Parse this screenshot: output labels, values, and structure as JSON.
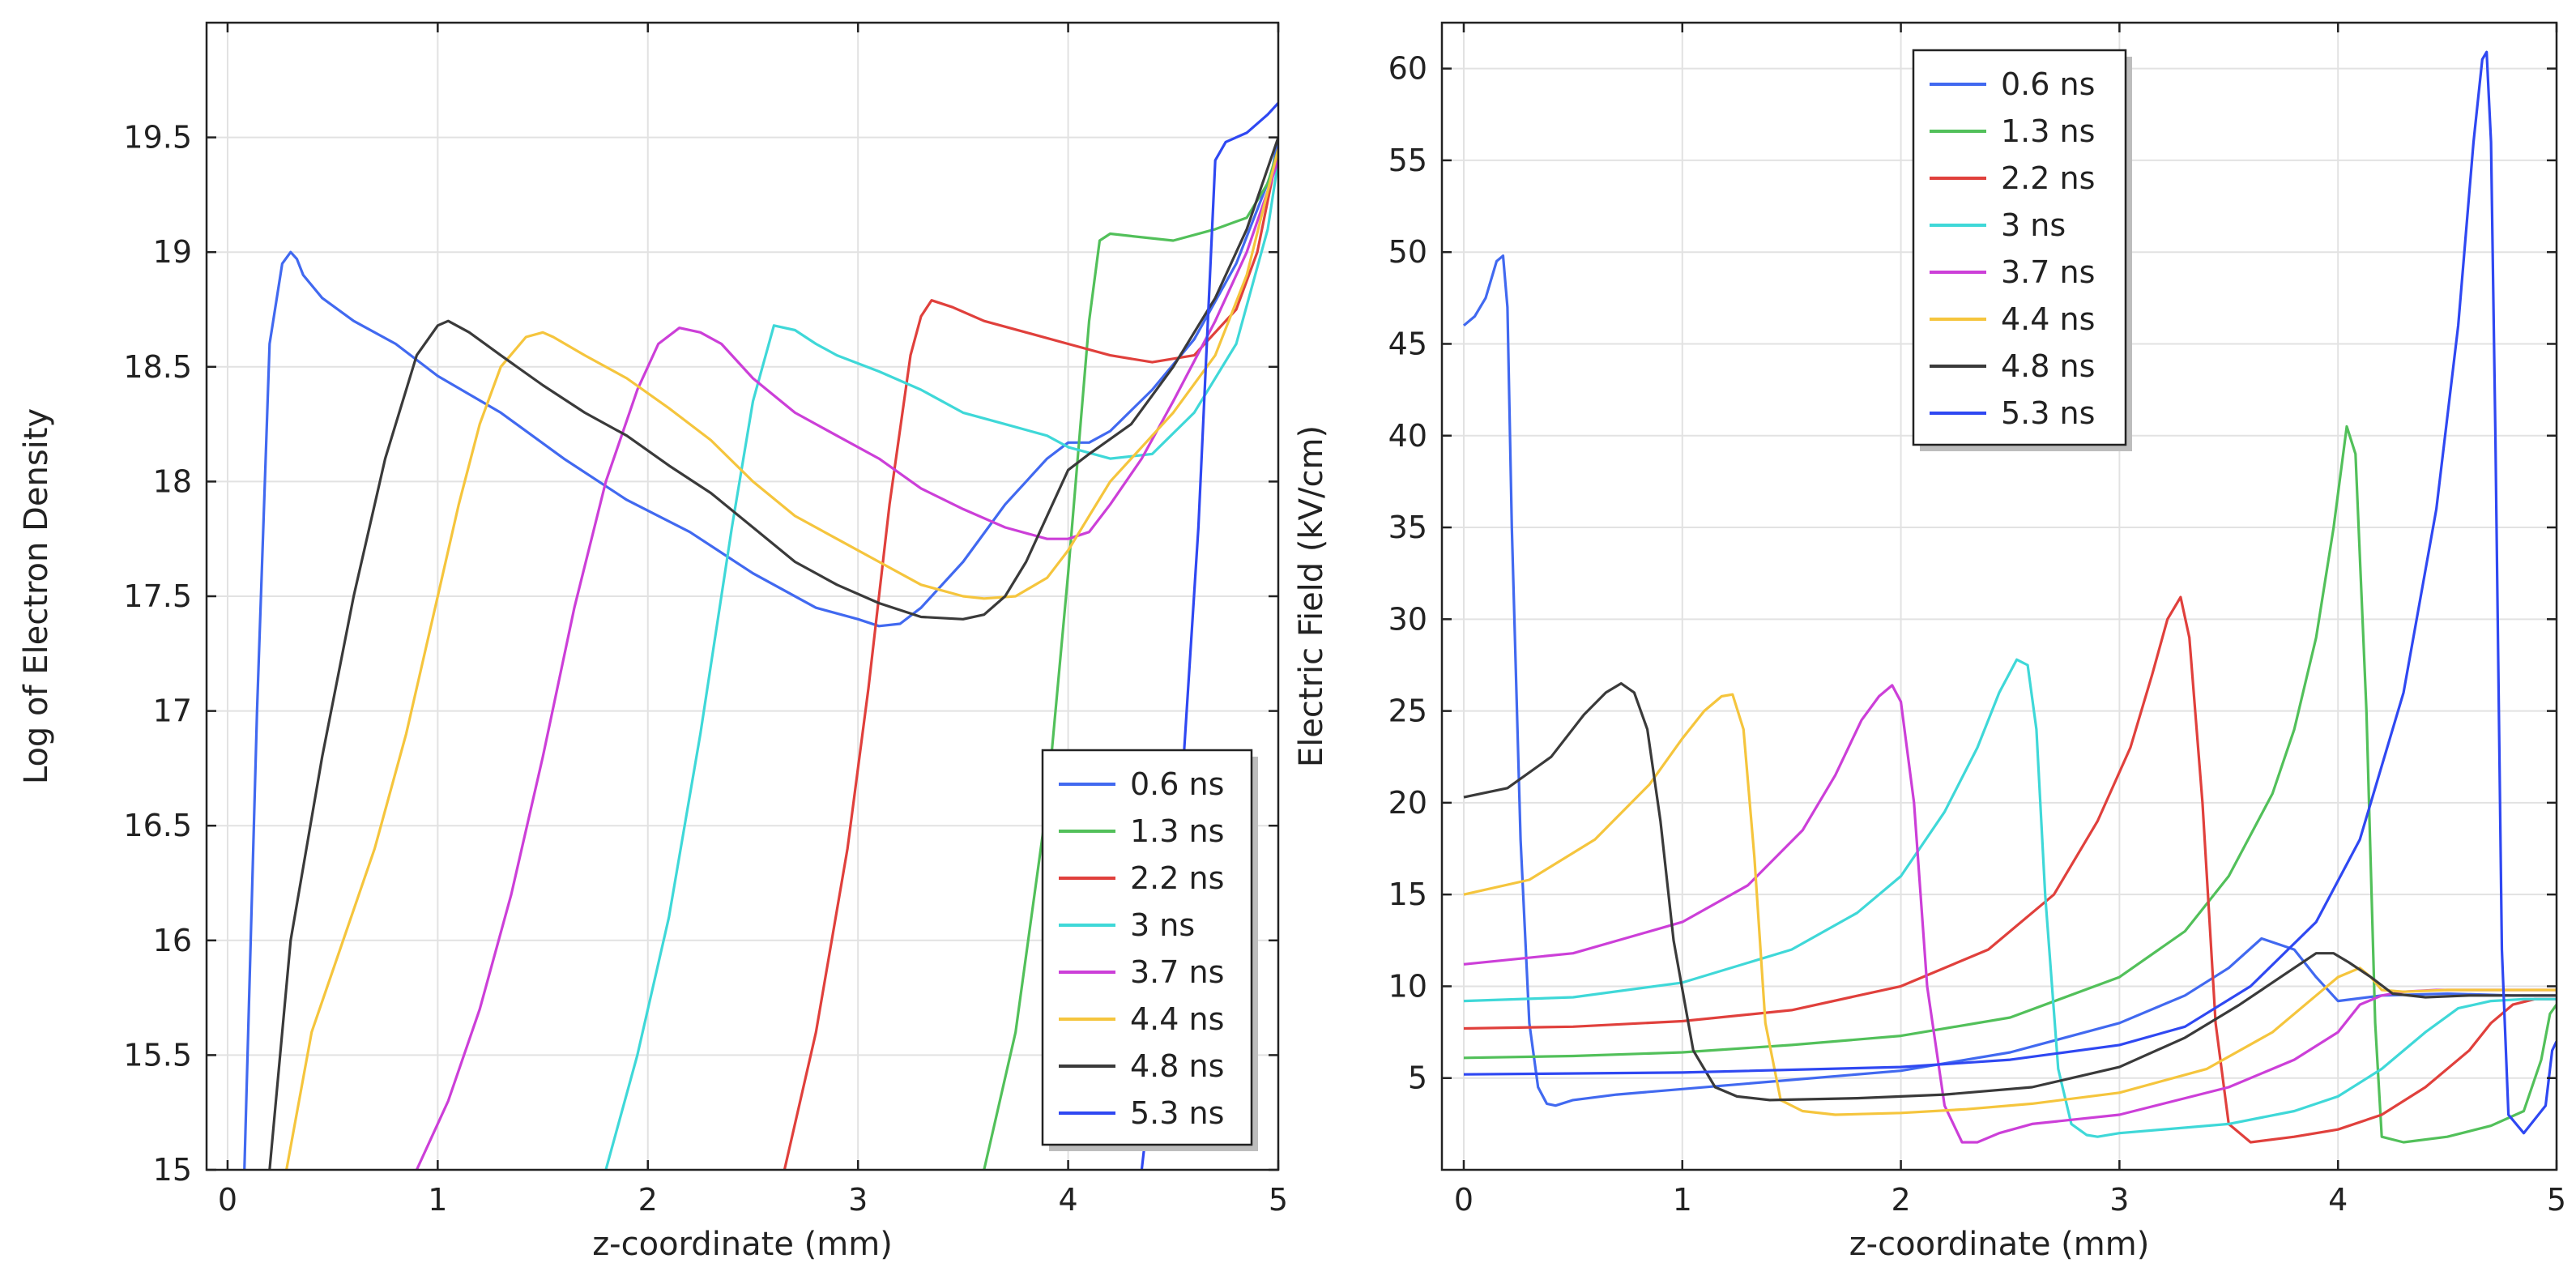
{
  "chart_data": [
    {
      "type": "line",
      "xlabel": "z-coordinate (mm)",
      "ylabel": "Log of Electron Density",
      "xlim": [
        -0.1,
        5
      ],
      "ylim": [
        15,
        20
      ],
      "xticks": [
        0,
        1,
        2,
        3,
        4,
        5
      ],
      "yticks": [
        15,
        15.5,
        16,
        16.5,
        17,
        17.5,
        18,
        18.5,
        19,
        19.5
      ],
      "xtick_labels": [
        "0",
        "1",
        "2",
        "3",
        "4",
        "5"
      ],
      "ytick_labels": [
        "15",
        "15.5",
        "16",
        "16.5",
        "17",
        "17.5",
        "18",
        "18.5",
        "19",
        "19.5"
      ],
      "grid": true,
      "legend_position": "bottom-right",
      "series": [
        {
          "name": "0.6 ns",
          "color": "#4169f0",
          "x": [
            0.08,
            0.14,
            0.2,
            0.26,
            0.3,
            0.33,
            0.36,
            0.45,
            0.6,
            0.8,
            1.0,
            1.3,
            1.6,
            1.9,
            2.2,
            2.5,
            2.8,
            3.0,
            3.1,
            3.2,
            3.3,
            3.5,
            3.7,
            3.9,
            4.0,
            4.1,
            4.2,
            4.4,
            4.6,
            4.8,
            4.97,
            5.0
          ],
          "y": [
            15.0,
            17.0,
            18.6,
            18.95,
            19.0,
            18.97,
            18.9,
            18.8,
            18.7,
            18.6,
            18.46,
            18.3,
            18.1,
            17.92,
            17.78,
            17.6,
            17.45,
            17.4,
            17.37,
            17.38,
            17.45,
            17.65,
            17.9,
            18.1,
            18.17,
            18.17,
            18.22,
            18.4,
            18.62,
            18.95,
            19.35,
            19.5
          ]
        },
        {
          "name": "1.3 ns",
          "color": "#52c05a",
          "x": [
            3.6,
            3.75,
            3.9,
            4.0,
            4.1,
            4.15,
            4.2,
            4.3,
            4.5,
            4.7,
            4.85,
            4.95,
            5.0
          ],
          "y": [
            15.0,
            15.6,
            16.6,
            17.6,
            18.7,
            19.05,
            19.08,
            19.07,
            19.05,
            19.1,
            19.15,
            19.3,
            19.45
          ]
        },
        {
          "name": "2.2 ns",
          "color": "#e0403c",
          "x": [
            2.65,
            2.8,
            2.95,
            3.05,
            3.15,
            3.25,
            3.3,
            3.35,
            3.45,
            3.6,
            3.8,
            4.0,
            4.2,
            4.4,
            4.6,
            4.8,
            4.9,
            5.0
          ],
          "y": [
            15.0,
            15.6,
            16.4,
            17.1,
            17.9,
            18.55,
            18.72,
            18.79,
            18.76,
            18.7,
            18.65,
            18.6,
            18.55,
            18.52,
            18.55,
            18.75,
            19.0,
            19.45
          ]
        },
        {
          "name": "3 ns",
          "color": "#3fd8d8",
          "x": [
            1.8,
            1.95,
            2.1,
            2.25,
            2.4,
            2.5,
            2.6,
            2.7,
            2.8,
            2.9,
            3.1,
            3.3,
            3.5,
            3.7,
            3.9,
            4.0,
            4.2,
            4.4,
            4.6,
            4.8,
            4.95,
            5.0
          ],
          "y": [
            15.0,
            15.5,
            16.1,
            16.9,
            17.8,
            18.35,
            18.68,
            18.66,
            18.6,
            18.55,
            18.48,
            18.4,
            18.3,
            18.25,
            18.2,
            18.15,
            18.1,
            18.12,
            18.3,
            18.6,
            19.1,
            19.4
          ]
        },
        {
          "name": "3.7 ns",
          "color": "#cc3fd8",
          "x": [
            0.9,
            1.05,
            1.2,
            1.35,
            1.5,
            1.65,
            1.8,
            1.95,
            2.05,
            2.15,
            2.25,
            2.35,
            2.5,
            2.7,
            2.9,
            3.1,
            3.3,
            3.5,
            3.7,
            3.9,
            4.0,
            4.1,
            4.2,
            4.35,
            4.5,
            4.7,
            4.85,
            5.0
          ],
          "y": [
            15.0,
            15.3,
            15.7,
            16.2,
            16.8,
            17.45,
            18.0,
            18.4,
            18.6,
            18.67,
            18.65,
            18.6,
            18.45,
            18.3,
            18.2,
            18.1,
            17.97,
            17.88,
            17.8,
            17.75,
            17.75,
            17.78,
            17.9,
            18.1,
            18.35,
            18.7,
            19.0,
            19.4
          ]
        },
        {
          "name": "4.4 ns",
          "color": "#f5c53d",
          "x": [
            0.28,
            0.4,
            0.55,
            0.7,
            0.85,
            1.0,
            1.1,
            1.2,
            1.3,
            1.42,
            1.5,
            1.55,
            1.7,
            1.9,
            2.1,
            2.3,
            2.5,
            2.7,
            2.9,
            3.1,
            3.3,
            3.5,
            3.6,
            3.75,
            3.9,
            4.0,
            4.1,
            4.2,
            4.35,
            4.5,
            4.7,
            4.85,
            5.0
          ],
          "y": [
            15.0,
            15.6,
            16.0,
            16.4,
            16.9,
            17.5,
            17.9,
            18.25,
            18.5,
            18.63,
            18.65,
            18.63,
            18.55,
            18.45,
            18.32,
            18.18,
            18.0,
            17.85,
            17.75,
            17.65,
            17.55,
            17.5,
            17.49,
            17.5,
            17.58,
            17.7,
            17.85,
            18.0,
            18.15,
            18.3,
            18.55,
            18.9,
            19.45
          ]
        },
        {
          "name": "4.8 ns",
          "color": "#3a3a3a",
          "x": [
            0.2,
            0.3,
            0.45,
            0.6,
            0.75,
            0.9,
            1.0,
            1.05,
            1.15,
            1.3,
            1.5,
            1.7,
            1.9,
            2.1,
            2.3,
            2.5,
            2.7,
            2.9,
            3.1,
            3.3,
            3.5,
            3.6,
            3.7,
            3.8,
            3.9,
            4.0,
            4.1,
            4.3,
            4.5,
            4.7,
            4.85,
            5.0
          ],
          "y": [
            15.0,
            16.0,
            16.8,
            17.5,
            18.1,
            18.55,
            18.68,
            18.7,
            18.65,
            18.55,
            18.42,
            18.3,
            18.2,
            18.07,
            17.95,
            17.8,
            17.65,
            17.55,
            17.47,
            17.41,
            17.4,
            17.42,
            17.5,
            17.65,
            17.85,
            18.05,
            18.12,
            18.25,
            18.5,
            18.8,
            19.1,
            19.5
          ]
        },
        {
          "name": "5.3 ns",
          "color": "#2f48f2",
          "x": [
            4.35,
            4.45,
            4.55,
            4.62,
            4.67,
            4.7,
            4.75,
            4.85,
            4.95,
            5.0
          ],
          "y": [
            15.0,
            15.8,
            16.8,
            17.8,
            18.8,
            19.4,
            19.48,
            19.52,
            19.6,
            19.65
          ]
        }
      ]
    },
    {
      "type": "line",
      "xlabel": "z-coordinate (mm)",
      "ylabel": "Electric Field (kV/cm)",
      "xlim": [
        -0.1,
        5
      ],
      "ylim": [
        0,
        62.5
      ],
      "xticks": [
        0,
        1,
        2,
        3,
        4,
        5
      ],
      "yticks": [
        5,
        10,
        15,
        20,
        25,
        30,
        35,
        40,
        45,
        50,
        55,
        60
      ],
      "xtick_labels": [
        "0",
        "1",
        "2",
        "3",
        "4",
        "5"
      ],
      "ytick_labels": [
        "5",
        "10",
        "15",
        "20",
        "25",
        "30",
        "35",
        "40",
        "45",
        "50",
        "55",
        "60"
      ],
      "grid": true,
      "legend_position": "top-left",
      "series": [
        {
          "name": "0.6 ns",
          "color": "#4169f0",
          "x": [
            0.0,
            0.05,
            0.1,
            0.15,
            0.18,
            0.2,
            0.22,
            0.26,
            0.3,
            0.34,
            0.38,
            0.42,
            0.5,
            0.7,
            1.0,
            1.5,
            2.0,
            2.5,
            3.0,
            3.3,
            3.5,
            3.65,
            3.8,
            3.9,
            4.0,
            4.2,
            4.5,
            4.8,
            5.0
          ],
          "y": [
            46.0,
            46.5,
            47.5,
            49.5,
            49.8,
            47.0,
            35.0,
            18.0,
            8.0,
            4.5,
            3.6,
            3.5,
            3.8,
            4.1,
            4.4,
            4.9,
            5.4,
            6.4,
            8.0,
            9.5,
            11.0,
            12.6,
            12.0,
            10.5,
            9.2,
            9.5,
            9.6,
            9.5,
            9.5
          ]
        },
        {
          "name": "1.3 ns",
          "color": "#52c05a",
          "x": [
            0.0,
            0.5,
            1.0,
            1.5,
            2.0,
            2.5,
            3.0,
            3.3,
            3.5,
            3.7,
            3.8,
            3.9,
            3.98,
            4.04,
            4.08,
            4.13,
            4.17,
            4.2,
            4.3,
            4.5,
            4.7,
            4.85,
            4.93,
            4.97,
            5.0
          ],
          "y": [
            6.1,
            6.2,
            6.4,
            6.8,
            7.3,
            8.3,
            10.5,
            13.0,
            16.0,
            20.5,
            24.0,
            29.0,
            35.0,
            40.5,
            39.0,
            25.0,
            8.0,
            1.8,
            1.5,
            1.8,
            2.4,
            3.2,
            6.0,
            8.5,
            9.0
          ]
        },
        {
          "name": "2.2 ns",
          "color": "#e0403c",
          "x": [
            0.0,
            0.5,
            1.0,
            1.5,
            2.0,
            2.4,
            2.7,
            2.9,
            3.05,
            3.15,
            3.22,
            3.28,
            3.32,
            3.38,
            3.44,
            3.5,
            3.6,
            3.8,
            4.0,
            4.2,
            4.4,
            4.6,
            4.7,
            4.8,
            4.9,
            5.0
          ],
          "y": [
            7.7,
            7.8,
            8.1,
            8.7,
            10.0,
            12.0,
            15.0,
            19.0,
            23.0,
            27.0,
            30.0,
            31.2,
            29.0,
            20.0,
            8.0,
            2.5,
            1.5,
            1.8,
            2.2,
            3.0,
            4.5,
            6.5,
            8.0,
            9.0,
            9.3,
            9.3
          ]
        },
        {
          "name": "3 ns",
          "color": "#3fd8d8",
          "x": [
            0.0,
            0.5,
            1.0,
            1.5,
            1.8,
            2.0,
            2.2,
            2.35,
            2.45,
            2.53,
            2.58,
            2.62,
            2.66,
            2.72,
            2.78,
            2.85,
            2.9,
            3.0,
            3.5,
            3.8,
            4.0,
            4.2,
            4.4,
            4.55,
            4.7,
            4.85,
            5.0
          ],
          "y": [
            9.2,
            9.4,
            10.2,
            12.0,
            14.0,
            16.0,
            19.5,
            23.0,
            26.0,
            27.8,
            27.5,
            24.0,
            15.0,
            5.5,
            2.5,
            1.9,
            1.8,
            2.0,
            2.5,
            3.2,
            4.0,
            5.5,
            7.5,
            8.8,
            9.2,
            9.3,
            9.3
          ]
        },
        {
          "name": "3.7 ns",
          "color": "#cc3fd8",
          "x": [
            0.0,
            0.5,
            1.0,
            1.3,
            1.55,
            1.7,
            1.82,
            1.9,
            1.96,
            2.0,
            2.06,
            2.12,
            2.2,
            2.28,
            2.35,
            2.45,
            2.6,
            3.0,
            3.5,
            3.8,
            4.0,
            4.1,
            4.2,
            4.3,
            4.45,
            4.6,
            4.8,
            5.0
          ],
          "y": [
            11.2,
            11.8,
            13.5,
            15.5,
            18.5,
            21.5,
            24.5,
            25.8,
            26.4,
            25.5,
            20.0,
            10.0,
            3.5,
            1.5,
            1.5,
            2.0,
            2.5,
            3.0,
            4.5,
            6.0,
            7.5,
            9.0,
            9.5,
            9.7,
            9.8,
            9.8,
            9.8,
            9.8
          ]
        },
        {
          "name": "4.4 ns",
          "color": "#f5c53d",
          "x": [
            0.0,
            0.3,
            0.6,
            0.85,
            1.0,
            1.1,
            1.18,
            1.23,
            1.28,
            1.33,
            1.38,
            1.45,
            1.55,
            1.7,
            2.0,
            2.3,
            2.6,
            3.0,
            3.4,
            3.7,
            3.9,
            4.0,
            4.1,
            4.15,
            4.2,
            4.3,
            4.5,
            4.8,
            5.0
          ],
          "y": [
            15.0,
            15.8,
            18.0,
            21.0,
            23.5,
            25.0,
            25.8,
            25.9,
            24.0,
            17.0,
            8.0,
            3.8,
            3.2,
            3.0,
            3.1,
            3.3,
            3.6,
            4.2,
            5.5,
            7.5,
            9.5,
            10.5,
            11.0,
            10.5,
            9.8,
            9.7,
            9.8,
            9.8,
            9.8
          ]
        },
        {
          "name": "4.8 ns",
          "color": "#3a3a3a",
          "x": [
            0.0,
            0.2,
            0.4,
            0.55,
            0.65,
            0.72,
            0.78,
            0.84,
            0.9,
            0.96,
            1.05,
            1.15,
            1.25,
            1.4,
            1.8,
            2.2,
            2.6,
            3.0,
            3.3,
            3.55,
            3.75,
            3.9,
            3.98,
            4.05,
            4.15,
            4.25,
            4.4,
            4.6,
            4.8,
            5.0
          ],
          "y": [
            20.3,
            20.8,
            22.5,
            24.8,
            26.0,
            26.5,
            26.0,
            24.0,
            19.0,
            12.5,
            6.5,
            4.5,
            4.0,
            3.8,
            3.9,
            4.1,
            4.5,
            5.6,
            7.2,
            9.0,
            10.6,
            11.8,
            11.8,
            11.3,
            10.5,
            9.6,
            9.4,
            9.5,
            9.5,
            9.5
          ]
        },
        {
          "name": "5.3 ns",
          "color": "#2f48f2",
          "x": [
            0.0,
            1.0,
            2.0,
            2.5,
            3.0,
            3.3,
            3.6,
            3.9,
            4.1,
            4.3,
            4.45,
            4.55,
            4.62,
            4.66,
            4.68,
            4.7,
            4.72,
            4.75,
            4.78,
            4.85,
            4.95,
            4.98,
            5.0
          ],
          "y": [
            5.2,
            5.3,
            5.6,
            6.0,
            6.8,
            7.8,
            10.0,
            13.5,
            18.0,
            26.0,
            36.0,
            46.0,
            56.0,
            60.5,
            60.9,
            56.0,
            40.0,
            12.0,
            3.0,
            2.0,
            3.5,
            6.5,
            7.0
          ]
        }
      ]
    }
  ]
}
